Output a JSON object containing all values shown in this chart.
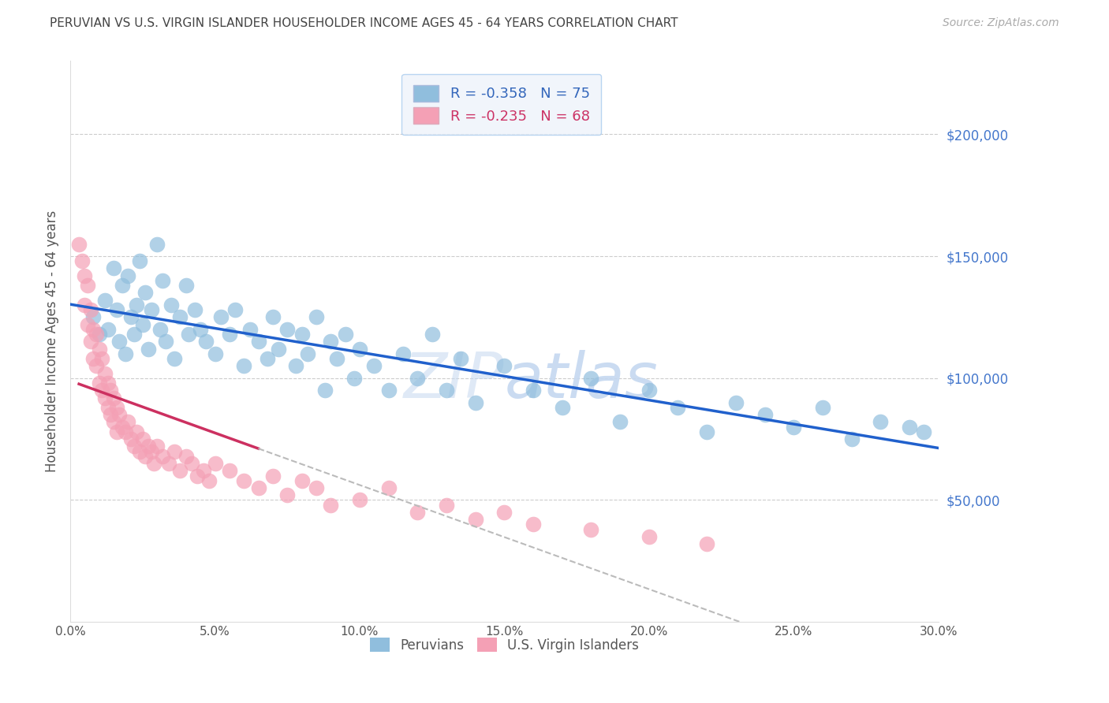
{
  "title": "PERUVIAN VS U.S. VIRGIN ISLANDER HOUSEHOLDER INCOME AGES 45 - 64 YEARS CORRELATION CHART",
  "source": "Source: ZipAtlas.com",
  "ylabel": "Householder Income Ages 45 - 64 years",
  "xlabel_ticks": [
    "0.0%",
    "5.0%",
    "10.0%",
    "15.0%",
    "20.0%",
    "25.0%",
    "30.0%"
  ],
  "xlabel_vals": [
    0.0,
    0.05,
    0.1,
    0.15,
    0.2,
    0.25,
    0.3
  ],
  "ytick_labels": [
    "$50,000",
    "$100,000",
    "$150,000",
    "$200,000"
  ],
  "ytick_vals": [
    50000,
    100000,
    150000,
    200000
  ],
  "xlim": [
    0.0,
    0.3
  ],
  "ylim": [
    0,
    230000
  ],
  "peruvian_R": -0.358,
  "peruvian_N": 75,
  "virgin_R": -0.235,
  "virgin_N": 68,
  "peruvian_color": "#90bedd",
  "virgin_color": "#f4a0b5",
  "trendline_peruvian_color": "#2060cc",
  "trendline_virgin_color": "#cc3060",
  "trendline_dashed_color": "#bbbbbb",
  "background_color": "#ffffff",
  "grid_color": "#cccccc",
  "title_color": "#444444",
  "source_color": "#aaaaaa",
  "axis_label_color": "#555555",
  "right_tick_color": "#4477cc",
  "legend_box_color": "#eef3fa",
  "legend_border_color": "#aaccee",
  "watermark_color": "#c5d8f0",
  "peruvian_x": [
    0.008,
    0.01,
    0.012,
    0.013,
    0.015,
    0.016,
    0.017,
    0.018,
    0.019,
    0.02,
    0.021,
    0.022,
    0.023,
    0.024,
    0.025,
    0.026,
    0.027,
    0.028,
    0.03,
    0.031,
    0.032,
    0.033,
    0.035,
    0.036,
    0.038,
    0.04,
    0.041,
    0.043,
    0.045,
    0.047,
    0.05,
    0.052,
    0.055,
    0.057,
    0.06,
    0.062,
    0.065,
    0.068,
    0.07,
    0.072,
    0.075,
    0.078,
    0.08,
    0.082,
    0.085,
    0.088,
    0.09,
    0.092,
    0.095,
    0.098,
    0.1,
    0.105,
    0.11,
    0.115,
    0.12,
    0.125,
    0.13,
    0.135,
    0.14,
    0.15,
    0.16,
    0.17,
    0.18,
    0.19,
    0.2,
    0.21,
    0.22,
    0.23,
    0.24,
    0.25,
    0.26,
    0.27,
    0.28,
    0.29,
    0.295
  ],
  "peruvian_y": [
    125000,
    118000,
    132000,
    120000,
    145000,
    128000,
    115000,
    138000,
    110000,
    142000,
    125000,
    118000,
    130000,
    148000,
    122000,
    135000,
    112000,
    128000,
    155000,
    120000,
    140000,
    115000,
    130000,
    108000,
    125000,
    138000,
    118000,
    128000,
    120000,
    115000,
    110000,
    125000,
    118000,
    128000,
    105000,
    120000,
    115000,
    108000,
    125000,
    112000,
    120000,
    105000,
    118000,
    110000,
    125000,
    95000,
    115000,
    108000,
    118000,
    100000,
    112000,
    105000,
    95000,
    110000,
    100000,
    118000,
    95000,
    108000,
    90000,
    105000,
    95000,
    88000,
    100000,
    82000,
    95000,
    88000,
    78000,
    90000,
    85000,
    80000,
    88000,
    75000,
    82000,
    80000,
    78000
  ],
  "virgin_x": [
    0.003,
    0.004,
    0.005,
    0.005,
    0.006,
    0.006,
    0.007,
    0.007,
    0.008,
    0.008,
    0.009,
    0.009,
    0.01,
    0.01,
    0.011,
    0.011,
    0.012,
    0.012,
    0.013,
    0.013,
    0.014,
    0.014,
    0.015,
    0.015,
    0.016,
    0.016,
    0.017,
    0.018,
    0.019,
    0.02,
    0.021,
    0.022,
    0.023,
    0.024,
    0.025,
    0.026,
    0.027,
    0.028,
    0.029,
    0.03,
    0.032,
    0.034,
    0.036,
    0.038,
    0.04,
    0.042,
    0.044,
    0.046,
    0.048,
    0.05,
    0.055,
    0.06,
    0.065,
    0.07,
    0.075,
    0.08,
    0.085,
    0.09,
    0.1,
    0.11,
    0.12,
    0.13,
    0.14,
    0.15,
    0.16,
    0.18,
    0.2,
    0.22
  ],
  "virgin_y": [
    155000,
    148000,
    142000,
    130000,
    138000,
    122000,
    128000,
    115000,
    120000,
    108000,
    118000,
    105000,
    112000,
    98000,
    108000,
    95000,
    102000,
    92000,
    98000,
    88000,
    95000,
    85000,
    92000,
    82000,
    88000,
    78000,
    85000,
    80000,
    78000,
    82000,
    75000,
    72000,
    78000,
    70000,
    75000,
    68000,
    72000,
    70000,
    65000,
    72000,
    68000,
    65000,
    70000,
    62000,
    68000,
    65000,
    60000,
    62000,
    58000,
    65000,
    62000,
    58000,
    55000,
    60000,
    52000,
    58000,
    55000,
    48000,
    50000,
    55000,
    45000,
    48000,
    42000,
    45000,
    40000,
    38000,
    35000,
    32000
  ]
}
